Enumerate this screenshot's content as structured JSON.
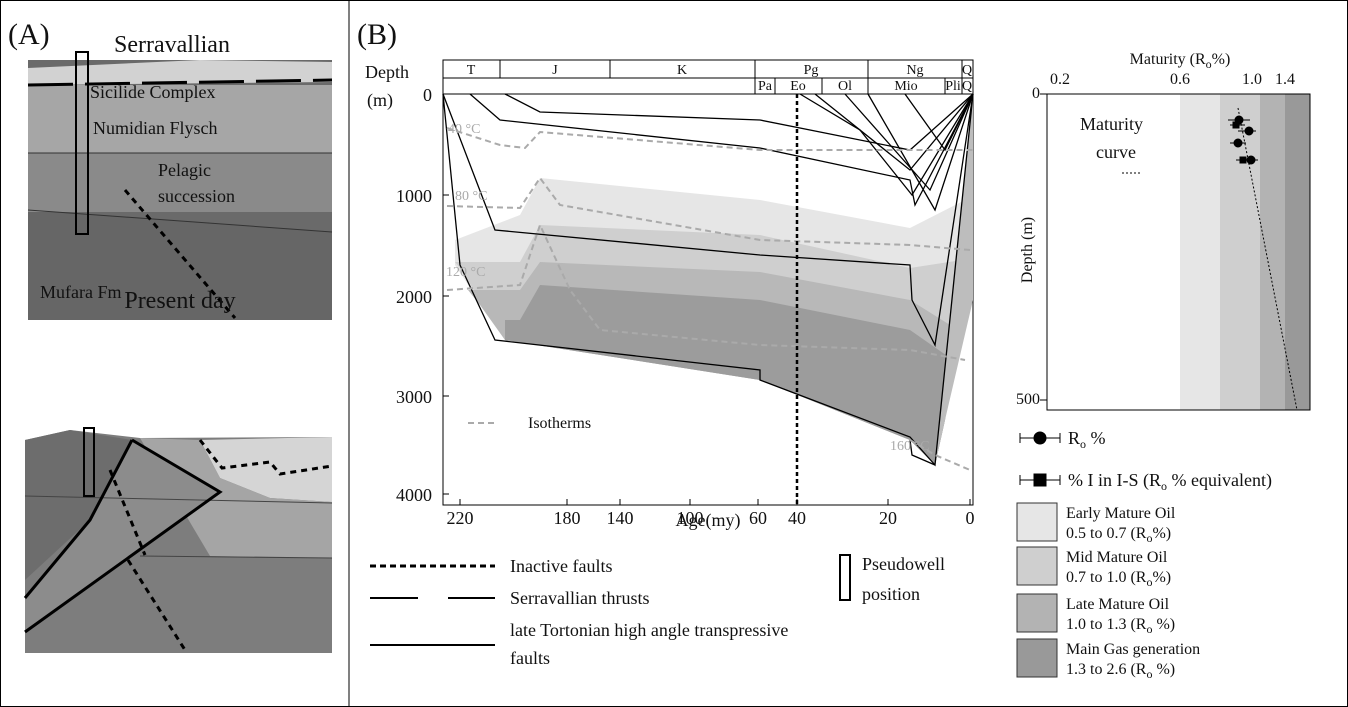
{
  "panel_a": {
    "label": "(A)",
    "serravallian": {
      "title": "Serravallian",
      "units": [
        "Sicilide Complex",
        "Numidian Flysch",
        "Pelagic",
        "succession",
        "Mufara Fm"
      ]
    },
    "present_day": {
      "title": "Present day"
    }
  },
  "panel_b": {
    "label": "(B)",
    "burial": {
      "depth_label": "Depth",
      "depth_unit": "(m)",
      "x_label": "Age(my)",
      "periods": [
        "T",
        "J",
        "K",
        "Pg",
        "Ng",
        "Q"
      ],
      "epochs": [
        "Pa",
        "Eo",
        "Ol",
        "Mio",
        "Pli",
        "Q"
      ],
      "xticks": [
        220,
        180,
        140,
        100,
        60,
        40,
        20,
        0
      ],
      "yticks": [
        0,
        1000,
        2000,
        3000,
        4000
      ],
      "isotherm_labels": [
        "40 °C",
        "80 °C",
        "120 °C",
        "160 °C"
      ],
      "legend": "Isotherms"
    },
    "legend": {
      "inactive": "Inactive faults",
      "thrusts": "Serravallian thrusts",
      "tortonian": [
        "late Tortonian high angle transpressive",
        "faults"
      ],
      "pseudowell": [
        "Pseudowell",
        "position"
      ]
    },
    "maturity": {
      "title": [
        "Maturity  (R",
        "o",
        "%)"
      ],
      "xticks": [
        "0.2",
        "0.6",
        "1.0",
        "1.4"
      ],
      "yticks": [
        "0",
        "500"
      ],
      "depth_label": "Depth (m)",
      "curve_label": [
        "Maturity",
        "curve"
      ],
      "point_legend": [
        [
          "R",
          "o",
          " %"
        ],
        [
          "% I in I-S (R",
          "o",
          " %  equivalent)"
        ]
      ],
      "zones": [
        {
          "name": "Early Mature Oil",
          "range": [
            "0.5 to 0.7 (R",
            "o",
            "%)"
          ]
        },
        {
          "name": "Mid Mature Oil",
          "range": [
            "0.7 to 1.0 (R",
            "o",
            "%)"
          ]
        },
        {
          "name": "Late Mature Oil",
          "range": [
            "1.0 to 1.3 (R",
            "o",
            " %)"
          ]
        },
        {
          "name": "Main Gas generation",
          "range": [
            "1.3 to 2.6 (R",
            "o",
            " %)"
          ]
        }
      ]
    }
  }
}
